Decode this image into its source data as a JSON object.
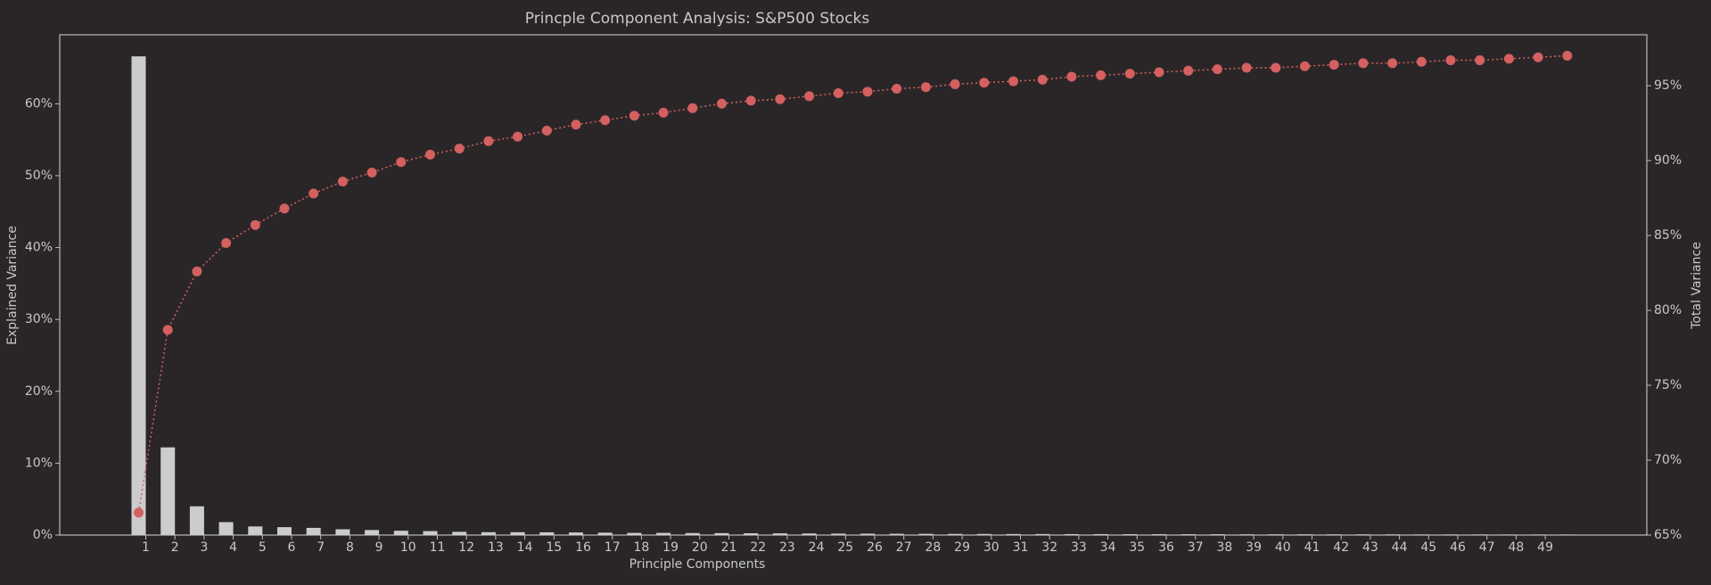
{
  "chart_data": {
    "type": "bar-line",
    "title": "Princple Component Analysis: S&P500 Stocks",
    "x_label": "Principle Components",
    "y_label": "Explained Variance",
    "y2_label": "Total Variance",
    "categories": [
      "1",
      "2",
      "3",
      "4",
      "5",
      "6",
      "7",
      "8",
      "9",
      "10",
      "11",
      "12",
      "13",
      "14",
      "15",
      "16",
      "17",
      "18",
      "19",
      "20",
      "21",
      "22",
      "23",
      "24",
      "25",
      "26",
      "27",
      "28",
      "29",
      "30",
      "31",
      "32",
      "33",
      "34",
      "35",
      "36",
      "37",
      "38",
      "39",
      "40",
      "41",
      "42",
      "43",
      "44",
      "45",
      "46",
      "47",
      "48",
      "49",
      null
    ],
    "series": [
      {
        "name": "Explained Variance",
        "type": "bar",
        "color": "#cccccc",
        "values": [
          66.6,
          12.2,
          4.0,
          1.8,
          1.2,
          1.1,
          1.0,
          0.8,
          0.7,
          0.6,
          0.55,
          0.45,
          0.4,
          0.4,
          0.38,
          0.36,
          0.33,
          0.3,
          0.3,
          0.28,
          0.27,
          0.25,
          0.24,
          0.22,
          0.2,
          0.19,
          0.18,
          0.17,
          0.16,
          0.15,
          0.14,
          0.14,
          0.13,
          0.13,
          0.12,
          0.12,
          0.11,
          0.11,
          0.1,
          0.1,
          0.1,
          0.09,
          0.09,
          0.09,
          0.08,
          0.08,
          0.08,
          0.07,
          0.07,
          0.07
        ]
      },
      {
        "name": "Total Variance",
        "type": "line",
        "axis": "y2",
        "color": "#d46060",
        "values": [
          66.5,
          78.7,
          82.6,
          84.5,
          85.7,
          86.8,
          87.8,
          88.6,
          89.2,
          89.9,
          90.4,
          90.8,
          91.3,
          91.6,
          92.0,
          92.4,
          92.7,
          93.0,
          93.2,
          93.5,
          93.8,
          94.0,
          94.1,
          94.3,
          94.5,
          94.6,
          94.8,
          94.9,
          95.1,
          95.2,
          95.3,
          95.4,
          95.6,
          95.7,
          95.8,
          95.9,
          96.0,
          96.1,
          96.2,
          96.2,
          96.3,
          96.4,
          96.5,
          96.5,
          96.6,
          96.7,
          96.7,
          96.8,
          96.9,
          97.0
        ]
      }
    ],
    "ylim": [
      0,
      69.6
    ],
    "yticks": [
      {
        "value": 0,
        "label": "0%"
      },
      {
        "value": 10,
        "label": "10%"
      },
      {
        "value": 20,
        "label": "20%"
      },
      {
        "value": 30,
        "label": "30%"
      },
      {
        "value": 40,
        "label": "40%"
      },
      {
        "value": 50,
        "label": "50%"
      },
      {
        "value": 60,
        "label": "60%"
      }
    ],
    "y2lim": [
      65,
      98.4
    ],
    "y2ticks": [
      {
        "value": 65,
        "label": "65%"
      },
      {
        "value": 70,
        "label": "70%"
      },
      {
        "value": 75,
        "label": "75%"
      },
      {
        "value": 80,
        "label": "80%"
      },
      {
        "value": 85,
        "label": "85%"
      },
      {
        "value": 90,
        "label": "90%"
      },
      {
        "value": 95,
        "label": "95%"
      }
    ]
  }
}
